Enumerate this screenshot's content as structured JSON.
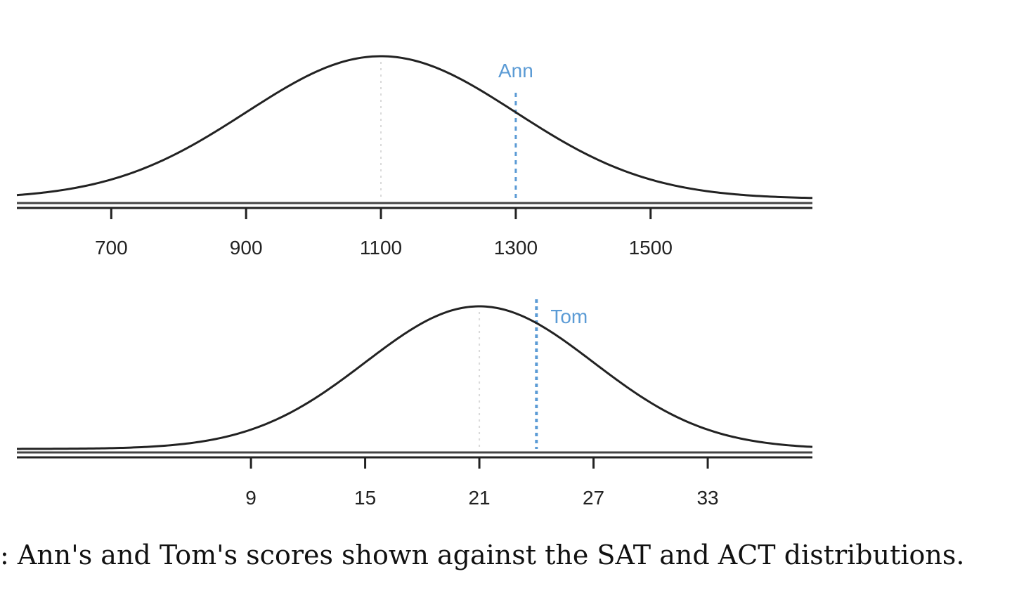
{
  "chart_data": [
    {
      "type": "line",
      "distribution": "normal",
      "mean": 1100,
      "sd": 200,
      "xlim": [
        560,
        1740
      ],
      "ticks": [
        700,
        900,
        1100,
        1300,
        1500
      ],
      "tick_labels": [
        "700",
        "900",
        "1100",
        "1300",
        "1500"
      ],
      "mean_line": 1100,
      "marker": {
        "label": "Ann",
        "value": 1300
      },
      "curve_color": "#222222",
      "marker_color": "#5b9bd5",
      "grid": false
    },
    {
      "type": "line",
      "distribution": "normal",
      "mean": 21,
      "sd": 6,
      "xlim": [
        -3.3,
        38.5
      ],
      "ticks": [
        9,
        15,
        21,
        27,
        33
      ],
      "tick_labels": [
        "9",
        "15",
        "21",
        "27",
        "33"
      ],
      "mean_line": 21,
      "marker": {
        "label": "Tom",
        "value": 24
      },
      "curve_color": "#222222",
      "marker_color": "#5b9bd5",
      "grid": false
    }
  ],
  "caption": ": Ann's and Tom's scores shown against the SAT and ACT distributions."
}
